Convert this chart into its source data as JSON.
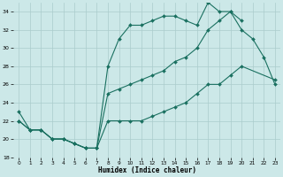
{
  "xlabel": "Humidex (Indice chaleur)",
  "bg_color": "#cce8e8",
  "grid_color": "#aacccc",
  "line_color": "#1a7060",
  "xlim": [
    -0.5,
    23.5
  ],
  "ylim": [
    18,
    35
  ],
  "xticks": [
    0,
    1,
    2,
    3,
    4,
    5,
    6,
    7,
    8,
    9,
    10,
    11,
    12,
    13,
    14,
    15,
    16,
    17,
    18,
    19,
    20,
    21,
    22,
    23
  ],
  "yticks": [
    18,
    20,
    22,
    24,
    26,
    28,
    30,
    32,
    34
  ],
  "s1_x": [
    0,
    1,
    2,
    3,
    4,
    5,
    6,
    7,
    8,
    9,
    10,
    11,
    12,
    13,
    14,
    15,
    16,
    17,
    18,
    19,
    20,
    21,
    22,
    23
  ],
  "s1_y": [
    23,
    21,
    21,
    20,
    20,
    19.5,
    19,
    19,
    28,
    31,
    32.5,
    32.5,
    33,
    33.5,
    33.5,
    33,
    32.5,
    35,
    34,
    34,
    32,
    31,
    29,
    26
  ],
  "s2_x": [
    0,
    1,
    2,
    3,
    4,
    5,
    6,
    7,
    8,
    9,
    10,
    11,
    12,
    13,
    14,
    15,
    16,
    17,
    18,
    19,
    20,
    21,
    22,
    23
  ],
  "s2_y": [
    22,
    21,
    21,
    20,
    20,
    19.5,
    19,
    19,
    25,
    25.5,
    26,
    26.5,
    27,
    27.5,
    28.5,
    29,
    30,
    32,
    33,
    34,
    33,
    null,
    null,
    null
  ],
  "s3_x": [
    0,
    1,
    2,
    3,
    4,
    5,
    6,
    7,
    8,
    9,
    10,
    11,
    12,
    13,
    14,
    15,
    16,
    17,
    18,
    19,
    20,
    21,
    22,
    23
  ],
  "s3_y": [
    22,
    21,
    21,
    20,
    20,
    19.5,
    19,
    19,
    22,
    22,
    22,
    22,
    22.5,
    23,
    23.5,
    24,
    25,
    26,
    26,
    27,
    28,
    null,
    null,
    26.5
  ]
}
